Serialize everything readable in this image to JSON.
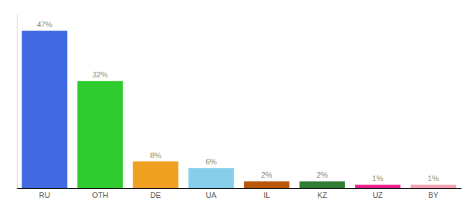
{
  "chart_data": {
    "type": "bar",
    "categories": [
      "RU",
      "OTH",
      "DE",
      "UA",
      "IL",
      "KZ",
      "UZ",
      "BY"
    ],
    "values": [
      47,
      32,
      8,
      6,
      2,
      2,
      1,
      1
    ],
    "value_labels": [
      "47%",
      "32%",
      "8%",
      "6%",
      "2%",
      "2%",
      "1%",
      "1%"
    ],
    "colors": [
      "#4169e1",
      "#2ecc2e",
      "#f0a020",
      "#87ceeb",
      "#b8560a",
      "#2e7d32",
      "#e91e8c",
      "#f4a0b0"
    ],
    "ylim": [
      0,
      52
    ],
    "data_labels": true,
    "tick_labels": "x"
  }
}
